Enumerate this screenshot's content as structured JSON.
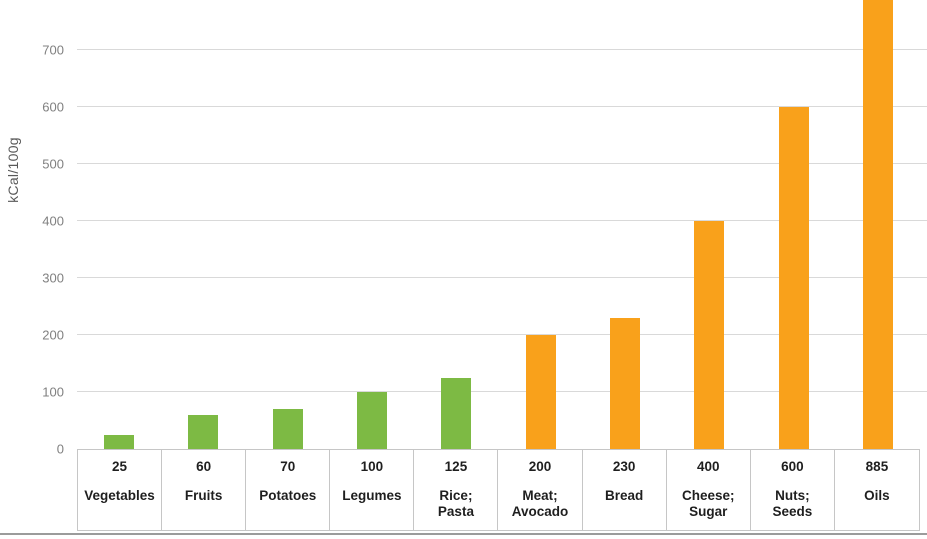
{
  "chart_data": {
    "type": "bar",
    "title": "",
    "xlabel": "",
    "ylabel": "kCal/100g",
    "categories": [
      "Vegetables",
      "Fruits",
      "Potatoes",
      "Legumes",
      "Rice;\nPasta",
      "Meat;\nAvocado",
      "Bread",
      "Cheese;\nSugar",
      "Nuts;\nSeeds",
      "Oils"
    ],
    "values": [
      25,
      60,
      70,
      100,
      125,
      200,
      230,
      400,
      600,
      885
    ],
    "value_labels": [
      "25",
      "60",
      "70",
      "100",
      "125",
      "200",
      "230",
      "400",
      "600",
      "885"
    ],
    "bar_color_keys": [
      "green",
      "green",
      "green",
      "green",
      "green",
      "orange",
      "orange",
      "orange",
      "orange",
      "orange"
    ],
    "yticks": [
      0,
      100,
      200,
      300,
      400,
      500,
      600,
      700
    ],
    "ylim": [
      0,
      787
    ],
    "grid": true,
    "legend": "none",
    "notes": "value row and category row shown as table under x-axis; Oils bar clipped at top of plot"
  },
  "colors": {
    "green": "#7DBA44",
    "orange": "#F9A11B",
    "gridline": "#D9D9D9",
    "table_border": "#C6C6C6",
    "tick_text": "#808080",
    "ylabel_text": "#595959",
    "bottom_line": "#9B9B9B"
  }
}
